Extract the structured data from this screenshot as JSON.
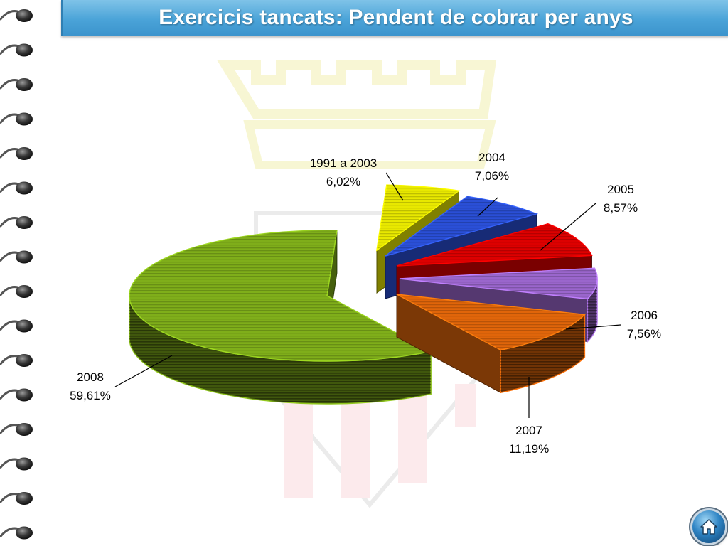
{
  "slide": {
    "title": "Exercicis tancats: Pendent de cobrar per anys"
  },
  "navigation": {
    "home_icon": "home-icon"
  },
  "colors": {
    "title_bar": "#4aa3d8",
    "slice_1991_2003": "#e8e800",
    "slice_2004": "#2a4fd6",
    "slice_2005": "#dd0000",
    "slice_2006": "#9a66cc",
    "slice_2007": "#e0650a",
    "slice_2008": "#7fae1a"
  },
  "chart_data": {
    "type": "pie",
    "style": "3d-exploded",
    "categories": [
      "1991 a 2003",
      "2004",
      "2005",
      "2006",
      "2007",
      "2008"
    ],
    "values": [
      6.02,
      7.06,
      8.57,
      7.56,
      11.19,
      59.61
    ],
    "value_labels": [
      "6,02%",
      "7,06%",
      "8,57%",
      "7,56%",
      "11,19%",
      "59,61%"
    ]
  }
}
